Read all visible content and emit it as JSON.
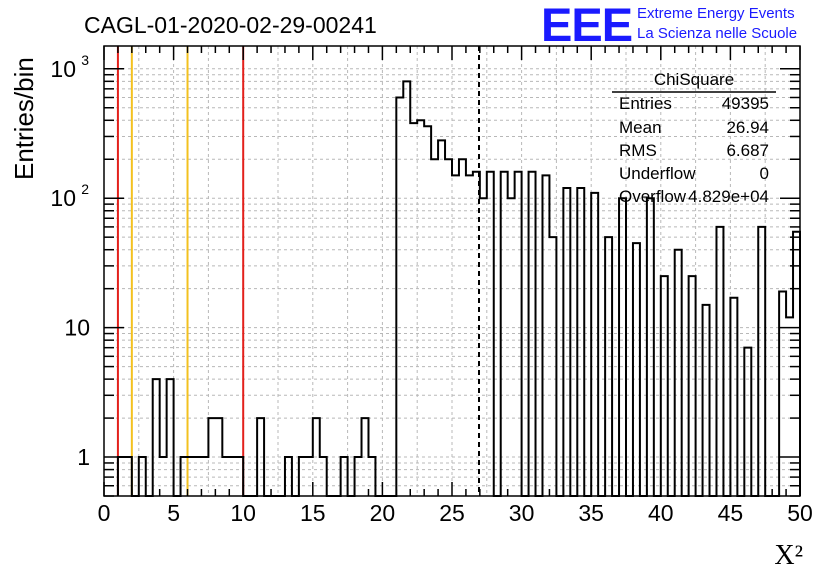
{
  "chart_data": {
    "type": "bar",
    "histogram_style": "step",
    "title": "CAGL-01-2020-02-29-00241",
    "xlabel": "X²",
    "ylabel": "Entries/bin",
    "xlim": [
      0,
      50
    ],
    "ylim": [
      0.5,
      1500
    ],
    "y_scale": "log",
    "grid": true,
    "bin_width": 0.5,
    "x_ticks": [
      {
        "value": 0,
        "label": "0"
      },
      {
        "value": 5,
        "label": "5"
      },
      {
        "value": 10,
        "label": "10"
      },
      {
        "value": 15,
        "label": "15"
      },
      {
        "value": 20,
        "label": "20"
      },
      {
        "value": 25,
        "label": "25"
      },
      {
        "value": 30,
        "label": "30"
      },
      {
        "value": 35,
        "label": "35"
      },
      {
        "value": 40,
        "label": "40"
      },
      {
        "value": 45,
        "label": "45"
      },
      {
        "value": 50,
        "label": "50"
      }
    ],
    "y_ticks": [
      {
        "value": 1,
        "label": "1"
      },
      {
        "value": 10,
        "label": "10"
      },
      {
        "value": 100,
        "label": "10",
        "exponent": "2"
      },
      {
        "value": 1000,
        "label": "10",
        "exponent": "3"
      }
    ],
    "bins": [
      {
        "x": 1.0,
        "count": 1
      },
      {
        "x": 1.5,
        "count": 1
      },
      {
        "x": 2.0,
        "count": 0.5
      },
      {
        "x": 2.5,
        "count": 1
      },
      {
        "x": 3.0,
        "count": 0.5
      },
      {
        "x": 3.5,
        "count": 4
      },
      {
        "x": 4.0,
        "count": 1
      },
      {
        "x": 4.5,
        "count": 4
      },
      {
        "x": 5.0,
        "count": 0.5
      },
      {
        "x": 5.5,
        "count": 1
      },
      {
        "x": 6.0,
        "count": 1
      },
      {
        "x": 6.5,
        "count": 1
      },
      {
        "x": 7.0,
        "count": 1
      },
      {
        "x": 7.5,
        "count": 2
      },
      {
        "x": 8.0,
        "count": 2
      },
      {
        "x": 8.5,
        "count": 1
      },
      {
        "x": 9.0,
        "count": 1
      },
      {
        "x": 9.5,
        "count": 1
      },
      {
        "x": 10.0,
        "count": 0.5
      },
      {
        "x": 10.5,
        "count": 0.5
      },
      {
        "x": 11.0,
        "count": 2
      },
      {
        "x": 11.5,
        "count": 0.5
      },
      {
        "x": 12.0,
        "count": 0.5
      },
      {
        "x": 12.5,
        "count": 0.5
      },
      {
        "x": 13.0,
        "count": 1
      },
      {
        "x": 13.5,
        "count": 0.5
      },
      {
        "x": 14.0,
        "count": 1
      },
      {
        "x": 14.5,
        "count": 1
      },
      {
        "x": 15.0,
        "count": 2
      },
      {
        "x": 15.5,
        "count": 1
      },
      {
        "x": 16.0,
        "count": 0.5
      },
      {
        "x": 16.5,
        "count": 0.5
      },
      {
        "x": 17.0,
        "count": 1
      },
      {
        "x": 17.5,
        "count": 0.5
      },
      {
        "x": 18.0,
        "count": 1
      },
      {
        "x": 18.5,
        "count": 2
      },
      {
        "x": 19.0,
        "count": 1
      },
      {
        "x": 19.5,
        "count": 0.5
      },
      {
        "x": 20.0,
        "count": 0.5
      },
      {
        "x": 20.5,
        "count": 0.5
      },
      {
        "x": 21.0,
        "count": 600
      },
      {
        "x": 21.5,
        "count": 800
      },
      {
        "x": 22.0,
        "count": 380
      },
      {
        "x": 22.5,
        "count": 400
      },
      {
        "x": 23.0,
        "count": 360
      },
      {
        "x": 23.5,
        "count": 200
      },
      {
        "x": 24.0,
        "count": 280
      },
      {
        "x": 24.5,
        "count": 200
      },
      {
        "x": 25.0,
        "count": 150
      },
      {
        "x": 25.5,
        "count": 200
      },
      {
        "x": 26.0,
        "count": 150
      },
      {
        "x": 26.5,
        "count": 160
      },
      {
        "x": 27.0,
        "count": 100
      },
      {
        "x": 27.5,
        "count": 160
      },
      {
        "x": 28.0,
        "count": 0.5
      },
      {
        "x": 28.5,
        "count": 160
      },
      {
        "x": 29.0,
        "count": 100
      },
      {
        "x": 29.5,
        "count": 160
      },
      {
        "x": 30.0,
        "count": 0.5
      },
      {
        "x": 30.5,
        "count": 160
      },
      {
        "x": 31.0,
        "count": 0.5
      },
      {
        "x": 31.5,
        "count": 150
      },
      {
        "x": 32.0,
        "count": 50
      },
      {
        "x": 32.5,
        "count": 0.5
      },
      {
        "x": 33.0,
        "count": 120
      },
      {
        "x": 33.5,
        "count": 0.5
      },
      {
        "x": 34.0,
        "count": 120
      },
      {
        "x": 34.5,
        "count": 0.5
      },
      {
        "x": 35.0,
        "count": 110
      },
      {
        "x": 35.5,
        "count": 0.5
      },
      {
        "x": 36.0,
        "count": 50
      },
      {
        "x": 36.5,
        "count": 0.5
      },
      {
        "x": 37.0,
        "count": 100
      },
      {
        "x": 37.5,
        "count": 0.5
      },
      {
        "x": 38.0,
        "count": 45
      },
      {
        "x": 38.5,
        "count": 0.5
      },
      {
        "x": 39.0,
        "count": 100
      },
      {
        "x": 39.5,
        "count": 0.5
      },
      {
        "x": 40.0,
        "count": 25
      },
      {
        "x": 40.5,
        "count": 0.5
      },
      {
        "x": 41.0,
        "count": 40
      },
      {
        "x": 41.5,
        "count": 0.5
      },
      {
        "x": 42.0,
        "count": 25
      },
      {
        "x": 42.5,
        "count": 0.5
      },
      {
        "x": 43.0,
        "count": 15
      },
      {
        "x": 43.5,
        "count": 0.5
      },
      {
        "x": 44.0,
        "count": 60
      },
      {
        "x": 44.5,
        "count": 0.5
      },
      {
        "x": 45.0,
        "count": 17
      },
      {
        "x": 45.5,
        "count": 0.5
      },
      {
        "x": 46.0,
        "count": 7
      },
      {
        "x": 46.5,
        "count": 0.5
      },
      {
        "x": 47.0,
        "count": 60
      },
      {
        "x": 47.5,
        "count": 0.5
      },
      {
        "x": 48.0,
        "count": 0.5
      },
      {
        "x": 48.5,
        "count": 19
      },
      {
        "x": 49.0,
        "count": 12
      },
      {
        "x": 49.5,
        "count": 55
      }
    ],
    "reference_lines": [
      {
        "x": 1.0,
        "color": "#e3201b",
        "style": "solid"
      },
      {
        "x": 2.0,
        "color": "#f3c11f",
        "style": "solid"
      },
      {
        "x": 6.0,
        "color": "#f3c11f",
        "style": "solid"
      },
      {
        "x": 10.0,
        "color": "#e3201b",
        "style": "solid"
      },
      {
        "x": 26.94,
        "color": "#000000",
        "style": "dashed"
      }
    ],
    "stats_box": {
      "title": "ChiSquare",
      "rows": [
        {
          "label": "Entries",
          "value": "49395"
        },
        {
          "label": "Mean",
          "value": "26.94"
        },
        {
          "label": "RMS",
          "value": "6.687"
        },
        {
          "label": "Underflow",
          "value": "0"
        },
        {
          "label": "Overflow",
          "value": "4.829e+04"
        }
      ]
    },
    "logo": {
      "letters": "EEE",
      "line1": "Extreme Energy Events",
      "line2": "La Scienza nelle Scuole",
      "color": "#1a1aff"
    }
  }
}
